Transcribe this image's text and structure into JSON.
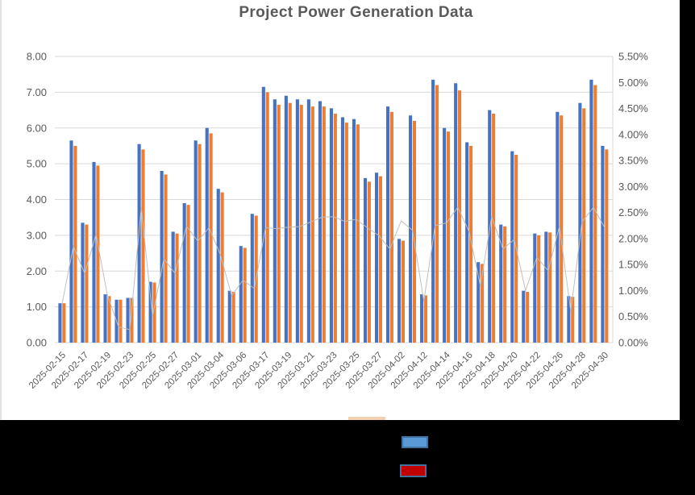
{
  "window": {
    "title": "Project Power Generation Data"
  },
  "styles": {
    "text_color": "#595959",
    "grid_color": "#d9d9d9",
    "background": "#ffffff",
    "mask_color": "#000000",
    "bar_blue": "#4472C4",
    "bar_orange": "#ED7D31",
    "line_gray": "#BFBFBF"
  },
  "chart_data": {
    "type": "bar",
    "subtype": "combo-bar-line-dual-axis",
    "title": "Project Power Generation Data",
    "grid": "horizontal",
    "legend_position": "bottom (labels obscured by black mask)",
    "categories": [
      "2025-02-15",
      "",
      "2025-02-17",
      "",
      "2025-02-19",
      "",
      "2025-02-23",
      "",
      "2025-02-25",
      "",
      "2025-02-27",
      "",
      "2025-03-01",
      "",
      "2025-03-04",
      "",
      "2025-03-06",
      "",
      "2025-03-17",
      "",
      "2025-03-19",
      "",
      "2025-03-21",
      "",
      "2025-03-23",
      "",
      "2025-03-25",
      "",
      "2025-03-27",
      "",
      "2025-04-02",
      "",
      "2025-04-12",
      "",
      "2025-04-14",
      "",
      "2025-04-16",
      "",
      "2025-04-18",
      "",
      "2025-04-20",
      "",
      "2025-04-22",
      "",
      "2025-04-26",
      "",
      "2025-04-28",
      "",
      "2025-04-30"
    ],
    "left_axis": {
      "min": 0,
      "max": 8,
      "step": 1,
      "ticks": [
        "0.00",
        "1.00",
        "2.00",
        "3.00",
        "4.00",
        "5.00",
        "6.00",
        "7.00",
        "8.00"
      ]
    },
    "right_axis": {
      "min": 0,
      "max": 5.5,
      "step": 0.5,
      "ticks": [
        "0.00%",
        "0.50%",
        "1.00%",
        "1.50%",
        "2.00%",
        "2.50%",
        "3.00%",
        "3.50%",
        "4.00%",
        "4.50%",
        "5.00%",
        "5.50%"
      ]
    },
    "series": [
      {
        "name": "blue-bars",
        "type": "bar",
        "axis": "left",
        "color": "#4472C4",
        "values": [
          1.1,
          5.65,
          3.35,
          5.05,
          1.35,
          1.2,
          1.25,
          5.55,
          1.7,
          4.8,
          3.1,
          3.9,
          5.65,
          6.0,
          4.3,
          1.45,
          2.7,
          3.6,
          7.15,
          6.8,
          6.9,
          6.8,
          6.8,
          6.75,
          6.55,
          6.3,
          6.25,
          4.6,
          4.75,
          6.6,
          2.9,
          6.35,
          1.35,
          7.35,
          6.0,
          7.25,
          5.6,
          2.25,
          6.5,
          3.3,
          5.35,
          1.45,
          3.05,
          3.1,
          6.45,
          1.3,
          6.7,
          7.35,
          5.5
        ]
      },
      {
        "name": "orange-bars",
        "type": "bar",
        "axis": "left",
        "color": "#ED7D31",
        "values": [
          1.1,
          5.5,
          3.3,
          4.95,
          1.3,
          1.2,
          1.25,
          5.4,
          1.68,
          4.7,
          3.05,
          3.85,
          5.55,
          5.85,
          4.2,
          1.42,
          2.65,
          3.55,
          7.0,
          6.65,
          6.7,
          6.65,
          6.6,
          6.6,
          6.4,
          6.15,
          6.1,
          4.5,
          4.65,
          6.45,
          2.85,
          6.2,
          1.32,
          7.2,
          5.9,
          7.05,
          5.5,
          2.2,
          6.4,
          3.25,
          5.25,
          1.42,
          3.0,
          3.08,
          6.35,
          1.28,
          6.55,
          7.2,
          5.4
        ]
      },
      {
        "name": "gray-line",
        "type": "line",
        "axis": "right",
        "color": "#BFBFBF",
        "unit": "percent",
        "values": [
          0.75,
          1.85,
          1.33,
          2.08,
          0.92,
          0.3,
          0.25,
          2.6,
          0.5,
          1.61,
          1.33,
          2.24,
          1.95,
          2.21,
          1.69,
          0.9,
          1.2,
          1.04,
          2.21,
          2.19,
          2.22,
          2.23,
          2.32,
          2.41,
          2.42,
          2.33,
          2.37,
          2.21,
          2.06,
          1.8,
          2.34,
          2.16,
          0.8,
          2.25,
          2.3,
          2.6,
          2.14,
          1.09,
          2.42,
          1.8,
          1.98,
          1.0,
          1.64,
          1.38,
          2.24,
          0.6,
          2.32,
          2.6,
          2.21
        ]
      }
    ],
    "legend": {
      "labels_visible": false,
      "swatches": [
        {
          "name": "blue-key",
          "fill": "#5B9BD5",
          "border": "#41719C"
        },
        {
          "name": "red-key",
          "fill": "#C00000",
          "border": "#41719C"
        }
      ],
      "partial_strip_color": "#F4D0AE"
    }
  }
}
